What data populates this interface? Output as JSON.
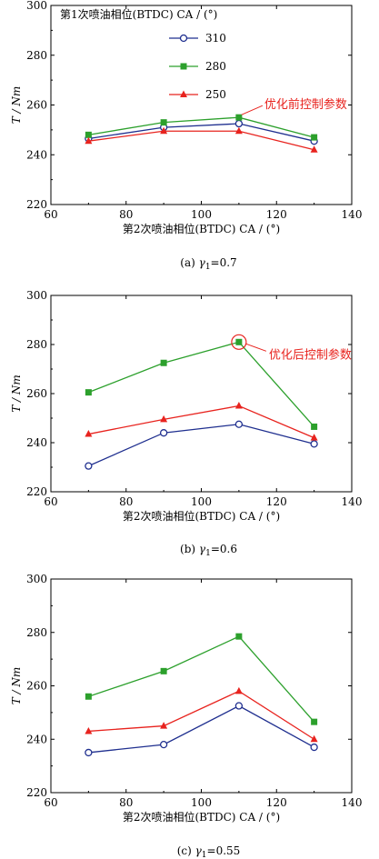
{
  "chart_data": [
    {
      "type": "line",
      "xlabel": "第2次喷油相位(BTDC) CA / (°)",
      "ylabel": "T / Nm",
      "xlim": [
        60,
        140
      ],
      "ylim": [
        220,
        300
      ],
      "xticks": [
        60,
        80,
        100,
        120,
        140
      ],
      "yticks": [
        220,
        240,
        260,
        280,
        300
      ],
      "x": [
        70,
        90,
        110,
        130
      ],
      "series": [
        {
          "name": "310",
          "values": [
            246.5,
            251.0,
            252.5,
            245.5
          ],
          "color": "#1f2f8f",
          "marker": "circle-open"
        },
        {
          "name": "280",
          "values": [
            248.0,
            253.0,
            255.0,
            247.0
          ],
          "color": "#2ca02c",
          "marker": "square"
        },
        {
          "name": "250",
          "values": [
            245.5,
            249.5,
            249.5,
            242.0
          ],
          "color": "#e8231e",
          "marker": "triangle"
        }
      ],
      "legend": {
        "title": "第1次喷油相位(BTDC) CA / (°)",
        "placement": "top-left"
      },
      "caption": {
        "prefix": "(a)",
        "gamma": "γ",
        "sub": "1",
        "value": "=0.7"
      },
      "annotation": {
        "text": "优化前控制参数",
        "series": 1,
        "point": 2,
        "circle": false
      }
    },
    {
      "type": "line",
      "xlabel": "第2次喷油相位(BTDC) CA / (°)",
      "ylabel": "T / Nm",
      "xlim": [
        60,
        140
      ],
      "ylim": [
        220,
        300
      ],
      "xticks": [
        60,
        80,
        100,
        120,
        140
      ],
      "yticks": [
        220,
        240,
        260,
        280,
        300
      ],
      "x": [
        70,
        90,
        110,
        130
      ],
      "series": [
        {
          "name": "310",
          "values": [
            230.5,
            244.0,
            247.5,
            239.5
          ],
          "color": "#1f2f8f",
          "marker": "circle-open"
        },
        {
          "name": "280",
          "values": [
            260.5,
            272.5,
            281.0,
            246.5
          ],
          "color": "#2ca02c",
          "marker": "square"
        },
        {
          "name": "250",
          "values": [
            243.5,
            249.5,
            255.0,
            242.0
          ],
          "color": "#e8231e",
          "marker": "triangle"
        }
      ],
      "caption": {
        "prefix": "(b)",
        "gamma": "γ",
        "sub": "1",
        "value": "=0.6"
      },
      "annotation": {
        "text": "优化后控制参数",
        "series": 1,
        "point": 2,
        "circle": true
      }
    },
    {
      "type": "line",
      "xlabel": "第2次喷油相位(BTDC) CA / (°)",
      "ylabel": "T / Nm",
      "xlim": [
        60,
        140
      ],
      "ylim": [
        220,
        300
      ],
      "xticks": [
        60,
        80,
        100,
        120,
        140
      ],
      "yticks": [
        220,
        240,
        260,
        280,
        300
      ],
      "x": [
        70,
        90,
        110,
        130
      ],
      "series": [
        {
          "name": "310",
          "values": [
            235.0,
            238.0,
            252.5,
            237.0
          ],
          "color": "#1f2f8f",
          "marker": "circle-open"
        },
        {
          "name": "280",
          "values": [
            256.0,
            265.5,
            278.5,
            246.5
          ],
          "color": "#2ca02c",
          "marker": "square"
        },
        {
          "name": "250",
          "values": [
            243.0,
            245.0,
            258.0,
            240.0
          ],
          "color": "#e8231e",
          "marker": "triangle"
        }
      ],
      "caption": {
        "prefix": "(c)",
        "gamma": "γ",
        "sub": "1",
        "value": "=0.55"
      }
    }
  ]
}
